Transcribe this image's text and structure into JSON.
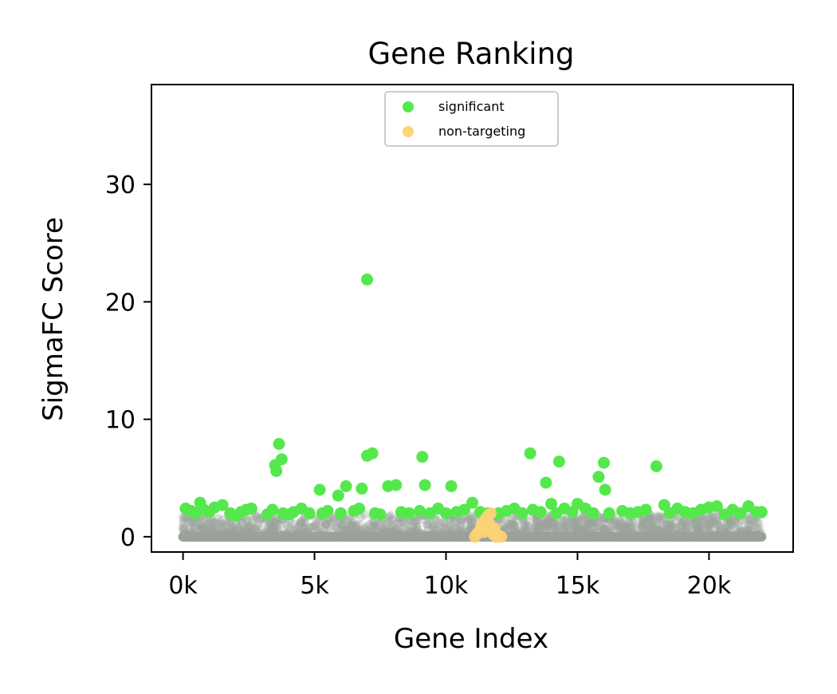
{
  "chart_data": {
    "type": "scatter",
    "title": "Gene Ranking",
    "xlabel": "Gene Index",
    "ylabel": "SigmaFC Score",
    "xlim": [
      -1200,
      23200
    ],
    "ylim": [
      -1.3,
      38.5
    ],
    "xticks": [
      {
        "value": 0,
        "label": "0k"
      },
      {
        "value": 5000,
        "label": "5k"
      },
      {
        "value": 10000,
        "label": "10k"
      },
      {
        "value": 15000,
        "label": "15k"
      },
      {
        "value": 20000,
        "label": "20k"
      }
    ],
    "yticks": [
      {
        "value": 0,
        "label": "0"
      },
      {
        "value": 10,
        "label": "10"
      },
      {
        "value": 20,
        "label": "20"
      },
      {
        "value": 30,
        "label": "30"
      }
    ],
    "grid": false,
    "legend_position": "top-center",
    "colors": {
      "significant": "#55e84d",
      "non_targeting": "#fdd377",
      "background": "#9aa39b"
    },
    "series": [
      {
        "name": "significant",
        "color": "#55e84d",
        "points": [
          [
            100,
            2.4
          ],
          [
            300,
            2.2
          ],
          [
            500,
            2.0
          ],
          [
            650,
            2.9
          ],
          [
            800,
            2.3
          ],
          [
            1000,
            2.1
          ],
          [
            1200,
            2.5
          ],
          [
            1500,
            2.7
          ],
          [
            1800,
            2.0
          ],
          [
            2000,
            1.8
          ],
          [
            2200,
            2.1
          ],
          [
            2400,
            2.3
          ],
          [
            2600,
            2.4
          ],
          [
            3200,
            1.9
          ],
          [
            3400,
            2.3
          ],
          [
            3500,
            6.1
          ],
          [
            3550,
            5.6
          ],
          [
            3650,
            7.9
          ],
          [
            3750,
            6.6
          ],
          [
            3800,
            2.0
          ],
          [
            4000,
            1.9
          ],
          [
            4200,
            2.1
          ],
          [
            4500,
            2.4
          ],
          [
            4800,
            2.0
          ],
          [
            5200,
            4.0
          ],
          [
            5300,
            2.0
          ],
          [
            5500,
            2.2
          ],
          [
            5900,
            3.5
          ],
          [
            6000,
            2.0
          ],
          [
            6200,
            4.3
          ],
          [
            6500,
            2.2
          ],
          [
            6700,
            2.4
          ],
          [
            6800,
            4.1
          ],
          [
            7000,
            21.9
          ],
          [
            7000,
            6.9
          ],
          [
            7200,
            7.1
          ],
          [
            7300,
            2.0
          ],
          [
            7500,
            1.9
          ],
          [
            7800,
            4.3
          ],
          [
            8100,
            4.4
          ],
          [
            8300,
            2.1
          ],
          [
            8600,
            2.0
          ],
          [
            9000,
            2.2
          ],
          [
            9100,
            6.8
          ],
          [
            9200,
            4.4
          ],
          [
            9400,
            2.0
          ],
          [
            9700,
            2.4
          ],
          [
            10000,
            2.0
          ],
          [
            10200,
            4.3
          ],
          [
            10400,
            2.1
          ],
          [
            10700,
            2.3
          ],
          [
            11000,
            2.9
          ],
          [
            11300,
            2.1
          ],
          [
            11600,
            2.0
          ],
          [
            12000,
            2.0
          ],
          [
            12300,
            2.2
          ],
          [
            12600,
            2.4
          ],
          [
            12900,
            2.0
          ],
          [
            13200,
            7.1
          ],
          [
            13300,
            2.3
          ],
          [
            13600,
            2.1
          ],
          [
            13800,
            4.6
          ],
          [
            14000,
            2.8
          ],
          [
            14200,
            2.0
          ],
          [
            14300,
            6.4
          ],
          [
            14500,
            2.4
          ],
          [
            14800,
            2.1
          ],
          [
            15000,
            2.8
          ],
          [
            15300,
            2.4
          ],
          [
            15600,
            2.0
          ],
          [
            15800,
            5.1
          ],
          [
            16000,
            6.3
          ],
          [
            16050,
            4.0
          ],
          [
            16200,
            2.0
          ],
          [
            16700,
            2.2
          ],
          [
            17000,
            2.0
          ],
          [
            17300,
            2.1
          ],
          [
            17600,
            2.3
          ],
          [
            18000,
            6.0
          ],
          [
            18300,
            2.7
          ],
          [
            18500,
            2.0
          ],
          [
            18800,
            2.4
          ],
          [
            19100,
            2.1
          ],
          [
            19400,
            2.0
          ],
          [
            19700,
            2.3
          ],
          [
            20000,
            2.5
          ],
          [
            20300,
            2.6
          ],
          [
            20600,
            1.9
          ],
          [
            20900,
            2.3
          ],
          [
            21200,
            2.0
          ],
          [
            21500,
            2.6
          ],
          [
            21800,
            2.1
          ],
          [
            22000,
            2.1
          ]
        ]
      },
      {
        "name": "non-targeting",
        "color": "#fdd377",
        "points": [
          [
            11100,
            0.0
          ],
          [
            11200,
            0.3
          ],
          [
            11300,
            0.6
          ],
          [
            11350,
            0.9
          ],
          [
            11400,
            1.2
          ],
          [
            11450,
            0.4
          ],
          [
            11500,
            1.5
          ],
          [
            11550,
            0.8
          ],
          [
            11600,
            1.8
          ],
          [
            11650,
            1.1
          ],
          [
            11700,
            2.0
          ],
          [
            11750,
            0.5
          ],
          [
            11800,
            0.2
          ],
          [
            11850,
            0.7
          ],
          [
            11900,
            0.0
          ],
          [
            12000,
            0.1
          ],
          [
            12100,
            0.0
          ]
        ]
      }
    ],
    "background_distribution": {
      "x_range": [
        0,
        22000
      ],
      "baseline": 0.0,
      "upper_envelope": 1.9,
      "color": "#9aa39b"
    }
  }
}
